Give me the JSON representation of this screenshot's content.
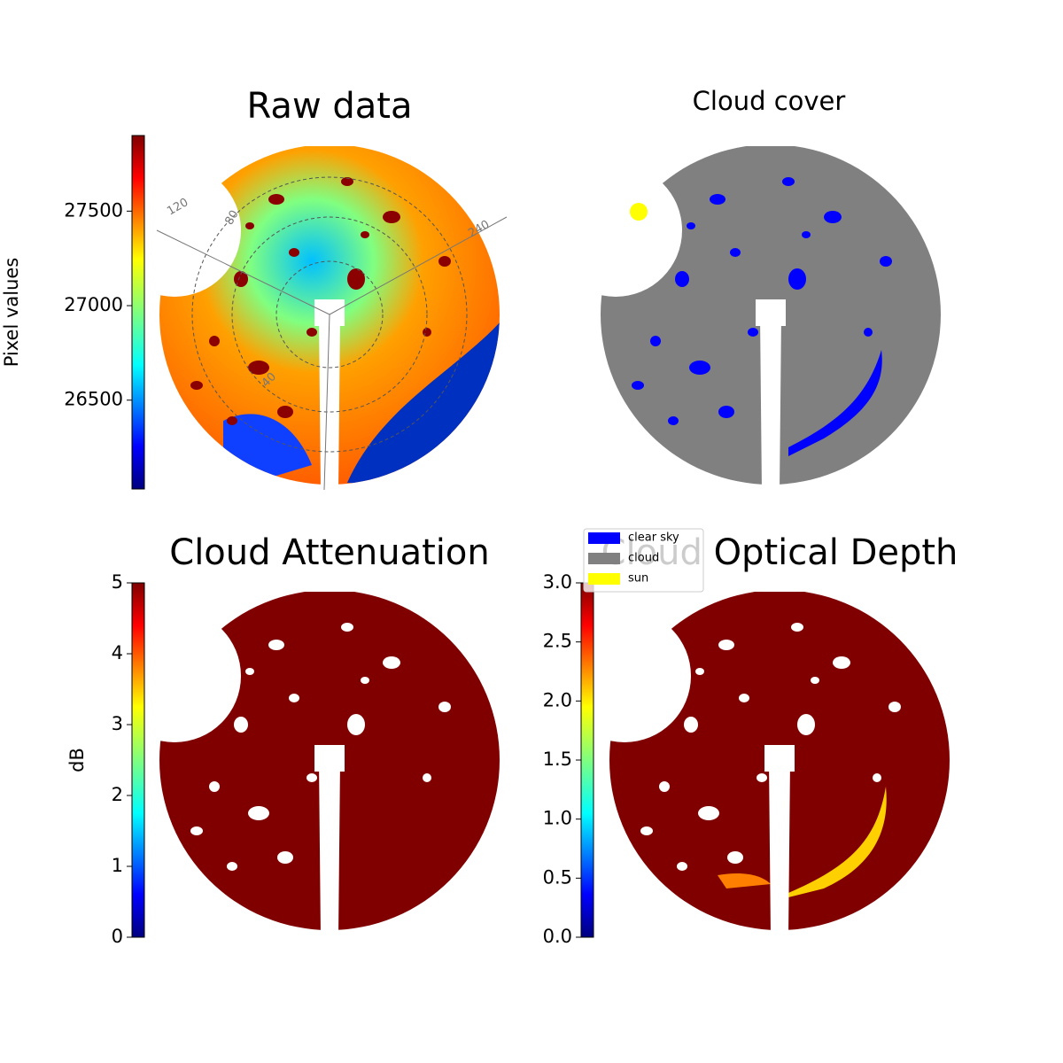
{
  "chart_data": [
    {
      "type": "image",
      "title": "Raw data",
      "ylabel": "Pixel values",
      "ylim": [
        26030,
        27900
      ],
      "yticks": [
        26500,
        27000,
        27500
      ],
      "annotations": [
        "120",
        "80",
        "240",
        "40"
      ]
    },
    {
      "type": "image",
      "title": "Cloud cover",
      "series": [
        {
          "name": "clear sky",
          "color": "#0000ff"
        },
        {
          "name": "cloud",
          "color": "#808080"
        },
        {
          "name": "sun",
          "color": "#ffff00"
        }
      ]
    },
    {
      "type": "image",
      "title": "Cloud Attenuation",
      "ylabel": "dB",
      "ylim": [
        0,
        5
      ],
      "yticks": [
        0,
        1,
        2,
        3,
        4,
        5
      ]
    },
    {
      "type": "image",
      "title": "Cloud Optical Depth",
      "ylim": [
        0,
        3
      ],
      "yticks": [
        {
          "value": 0,
          "label": "0.0"
        },
        {
          "value": 0.5,
          "label": "0.5"
        },
        {
          "value": 1,
          "label": "1.0"
        },
        {
          "value": 1.5,
          "label": "1.5"
        },
        {
          "value": 2,
          "label": "2.0"
        },
        {
          "value": 2.5,
          "label": "2.5"
        },
        {
          "value": 3,
          "label": "3.0"
        }
      ]
    }
  ]
}
